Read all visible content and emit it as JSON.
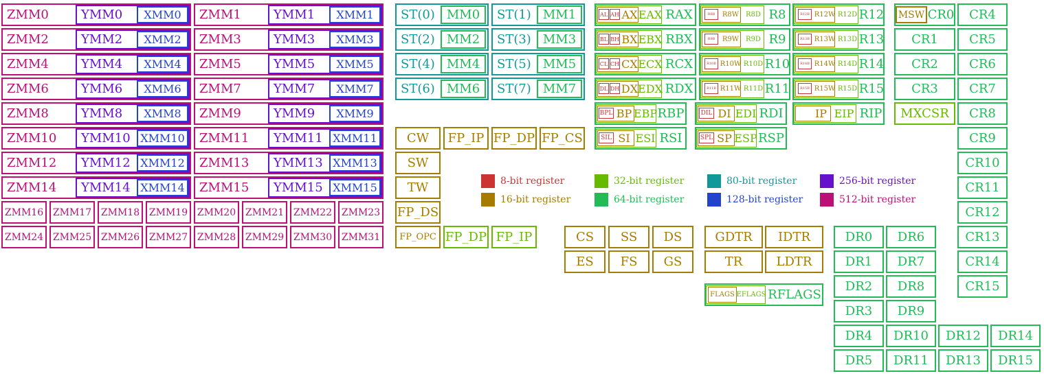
{
  "colors": {
    "b8": "#cc3333",
    "b16": "#a67c00",
    "b32": "#66bb00",
    "b64": "#22bb55",
    "b80": "#119999",
    "b128": "#2244cc",
    "b256": "#6611cc",
    "b512": "#bb1177"
  },
  "legend": [
    {
      "label": "8-bit register",
      "color": "b8"
    },
    {
      "label": "16-bit register",
      "color": "b16"
    },
    {
      "label": "32-bit register",
      "color": "b32"
    },
    {
      "label": "64-bit register",
      "color": "b64"
    },
    {
      "label": "80-bit register",
      "color": "b80"
    },
    {
      "label": "128-bit register",
      "color": "b128"
    },
    {
      "label": "256-bit register",
      "color": "b256"
    },
    {
      "label": "512-bit register",
      "color": "b512"
    }
  ],
  "vector": [
    {
      "zmm": "ZMM0",
      "ymm": "YMM0",
      "xmm": "XMM0"
    },
    {
      "zmm": "ZMM1",
      "ymm": "YMM1",
      "xmm": "XMM1"
    },
    {
      "zmm": "ZMM2",
      "ymm": "YMM2",
      "xmm": "XMM2"
    },
    {
      "zmm": "ZMM3",
      "ymm": "YMM3",
      "xmm": "XMM3"
    },
    {
      "zmm": "ZMM4",
      "ymm": "YMM4",
      "xmm": "XMM4"
    },
    {
      "zmm": "ZMM5",
      "ymm": "YMM5",
      "xmm": "XMM5"
    },
    {
      "zmm": "ZMM6",
      "ymm": "YMM6",
      "xmm": "XMM6"
    },
    {
      "zmm": "ZMM7",
      "ymm": "YMM7",
      "xmm": "XMM7"
    },
    {
      "zmm": "ZMM8",
      "ymm": "YMM8",
      "xmm": "XMM8"
    },
    {
      "zmm": "ZMM9",
      "ymm": "YMM9",
      "xmm": "XMM9"
    },
    {
      "zmm": "ZMM10",
      "ymm": "YMM10",
      "xmm": "XMM10"
    },
    {
      "zmm": "ZMM11",
      "ymm": "YMM11",
      "xmm": "XMM11"
    },
    {
      "zmm": "ZMM12",
      "ymm": "YMM12",
      "xmm": "XMM12"
    },
    {
      "zmm": "ZMM13",
      "ymm": "YMM13",
      "xmm": "XMM13"
    },
    {
      "zmm": "ZMM14",
      "ymm": "YMM14",
      "xmm": "XMM14"
    },
    {
      "zmm": "ZMM15",
      "ymm": "YMM15",
      "xmm": "XMM15"
    }
  ],
  "zmm_extra": [
    "ZMM16",
    "ZMM17",
    "ZMM18",
    "ZMM19",
    "ZMM20",
    "ZMM21",
    "ZMM22",
    "ZMM23",
    "ZMM24",
    "ZMM25",
    "ZMM26",
    "ZMM27",
    "ZMM28",
    "ZMM29",
    "ZMM30",
    "ZMM31"
  ],
  "x87": [
    {
      "st": "ST(0)",
      "mm": "MM0"
    },
    {
      "st": "ST(1)",
      "mm": "MM1"
    },
    {
      "st": "ST(2)",
      "mm": "MM2"
    },
    {
      "st": "ST(3)",
      "mm": "MM3"
    },
    {
      "st": "ST(4)",
      "mm": "MM4"
    },
    {
      "st": "ST(5)",
      "mm": "MM5"
    },
    {
      "st": "ST(6)",
      "mm": "MM6"
    },
    {
      "st": "ST(7)",
      "mm": "MM7"
    }
  ],
  "fpu_ctrl_row": [
    "CW",
    "FP_IP",
    "FP_DP",
    "FP_CS"
  ],
  "fpu_status_col": [
    "SW",
    "TW",
    "FP_DS"
  ],
  "fpu_last_row": [
    "FP_OPC",
    "FP_DP",
    "FP_IP"
  ],
  "gpr_legacy": [
    {
      "b8a": "AL",
      "b8b": "AH",
      "w": "AX",
      "d": "EAX",
      "q": "RAX"
    },
    {
      "b8a": "BL",
      "b8b": "BH",
      "w": "BX",
      "d": "EBX",
      "q": "RBX"
    },
    {
      "b8a": "CL",
      "b8b": "CH",
      "w": "CX",
      "d": "ECX",
      "q": "RCX"
    },
    {
      "b8a": "DL",
      "b8b": "DH",
      "w": "DX",
      "d": "EDX",
      "q": "RDX"
    }
  ],
  "gpr_new": [
    {
      "b": "R8B",
      "w": "R8W",
      "d": "R8D",
      "q": "R8"
    },
    {
      "b": "R12B",
      "w": "R12W",
      "d": "R12D",
      "q": "R12"
    },
    {
      "b": "R9B",
      "w": "R9W",
      "d": "R9D",
      "q": "R9"
    },
    {
      "b": "R13B",
      "w": "R13W",
      "d": "R13D",
      "q": "R13"
    },
    {
      "b": "R10B",
      "w": "R10W",
      "d": "R10D",
      "q": "R10"
    },
    {
      "b": "R14B",
      "w": "R14W",
      "d": "R14D",
      "q": "R14"
    },
    {
      "b": "R11B",
      "w": "R11W",
      "d": "R11D",
      "q": "R11"
    },
    {
      "b": "R15B",
      "w": "R15W",
      "d": "R15D",
      "q": "R15"
    }
  ],
  "gpr_ptr": [
    {
      "b": "BPL",
      "w": "BP",
      "d": "EBP",
      "q": "RBP"
    },
    {
      "b": "DIL",
      "w": "DI",
      "d": "EDI",
      "q": "RDI"
    },
    {
      "b": "SIL",
      "w": "SI",
      "d": "ESI",
      "q": "RSI"
    },
    {
      "b": "SPL",
      "w": "SP",
      "d": "ESP",
      "q": "RSP"
    }
  ],
  "rip": {
    "w": "IP",
    "d": "EIP",
    "q": "RIP"
  },
  "cr0": {
    "msw": "MSW",
    "cr": "CR0"
  },
  "cr_mid": [
    "CR1",
    "CR2",
    "CR3"
  ],
  "mxcsr": "MXCSR",
  "cr_right": [
    "CR4",
    "CR5",
    "CR6",
    "CR7",
    "CR8",
    "CR9",
    "CR10",
    "CR11",
    "CR12",
    "CR13",
    "CR14",
    "CR15"
  ],
  "segments": [
    "CS",
    "SS",
    "DS",
    "ES",
    "FS",
    "GS"
  ],
  "tables": [
    "GDTR",
    "IDTR",
    "TR",
    "LDTR"
  ],
  "flags": {
    "w": "FLAGS",
    "d": "EFLAGS",
    "q": "RFLAGS"
  },
  "debug": {
    "col1": [
      "DR0",
      "DR1",
      "DR2",
      "DR3",
      "DR4",
      "DR5"
    ],
    "col2": [
      "DR6",
      "DR7",
      "DR8",
      "DR9",
      "DR10",
      "DR11"
    ],
    "col3": [
      "DR12",
      "DR13"
    ],
    "col4": [
      "DR14",
      "DR15"
    ]
  }
}
